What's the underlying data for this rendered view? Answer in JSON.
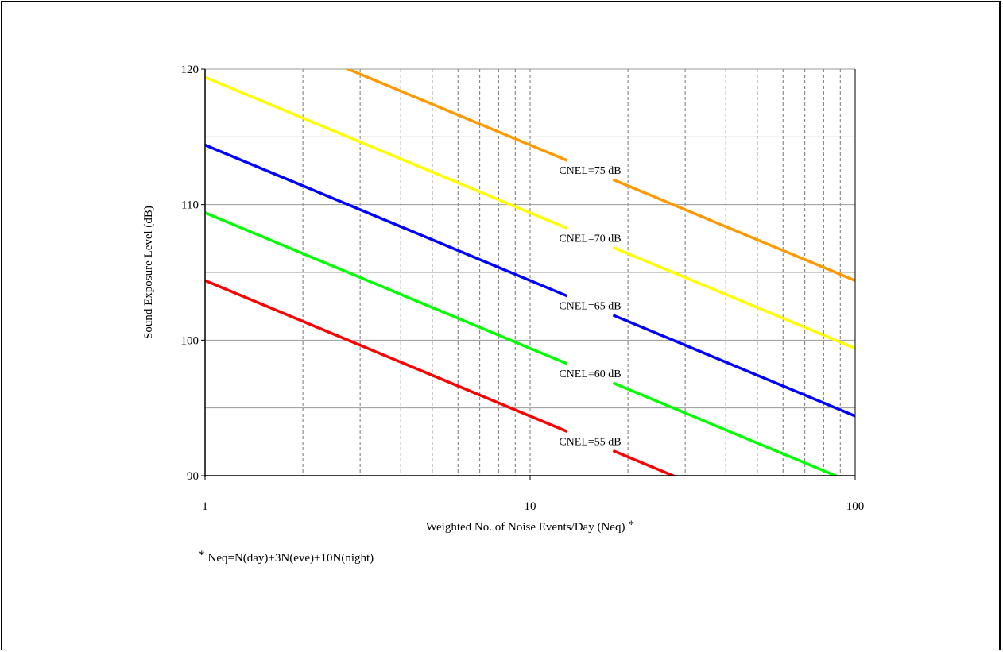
{
  "colors": {
    "grid_major": "#999999",
    "grid_minor": "#777777",
    "axis": "#000000"
  },
  "chart_data": {
    "type": "line",
    "xscale": "log",
    "xlim": [
      1,
      100
    ],
    "ylim": [
      90,
      120
    ],
    "xlabel": "Weighted No. of Noise Events/Day (Neq)",
    "xlabel_mark": "*",
    "ylabel": "Sound Exposure Level (dB)",
    "xticks": [
      {
        "value": 1,
        "label": "1"
      },
      {
        "value": 10,
        "label": "10"
      },
      {
        "value": 100,
        "label": "100"
      }
    ],
    "yticks": [
      {
        "value": 90,
        "label": "90"
      },
      {
        "value": 100,
        "label": "100"
      },
      {
        "value": 110,
        "label": "110"
      },
      {
        "value": 120,
        "label": "120"
      }
    ],
    "minor_y_gridlines": [
      95,
      105,
      115
    ],
    "grid": true,
    "series": [
      {
        "name": "CNEL=75 dB",
        "color": "#FF9900",
        "x": [
          1,
          100
        ],
        "y": [
          124.4,
          104.4
        ]
      },
      {
        "name": "CNEL=70 dB",
        "color": "#FFFF00",
        "x": [
          1,
          100
        ],
        "y": [
          119.4,
          99.4
        ]
      },
      {
        "name": "CNEL=65 dB",
        "color": "#0000FF",
        "x": [
          1,
          100
        ],
        "y": [
          114.4,
          94.4
        ]
      },
      {
        "name": "CNEL=60 dB",
        "color": "#00FF00",
        "x": [
          1,
          100
        ],
        "y": [
          109.4,
          89.4
        ]
      },
      {
        "name": "CNEL=55 dB",
        "color": "#FF0000",
        "x": [
          1,
          100
        ],
        "y": [
          104.4,
          84.4
        ]
      }
    ],
    "footnote_mark": "*",
    "footnote": "Neq=N(day)+3N(eve)+10N(night)"
  }
}
